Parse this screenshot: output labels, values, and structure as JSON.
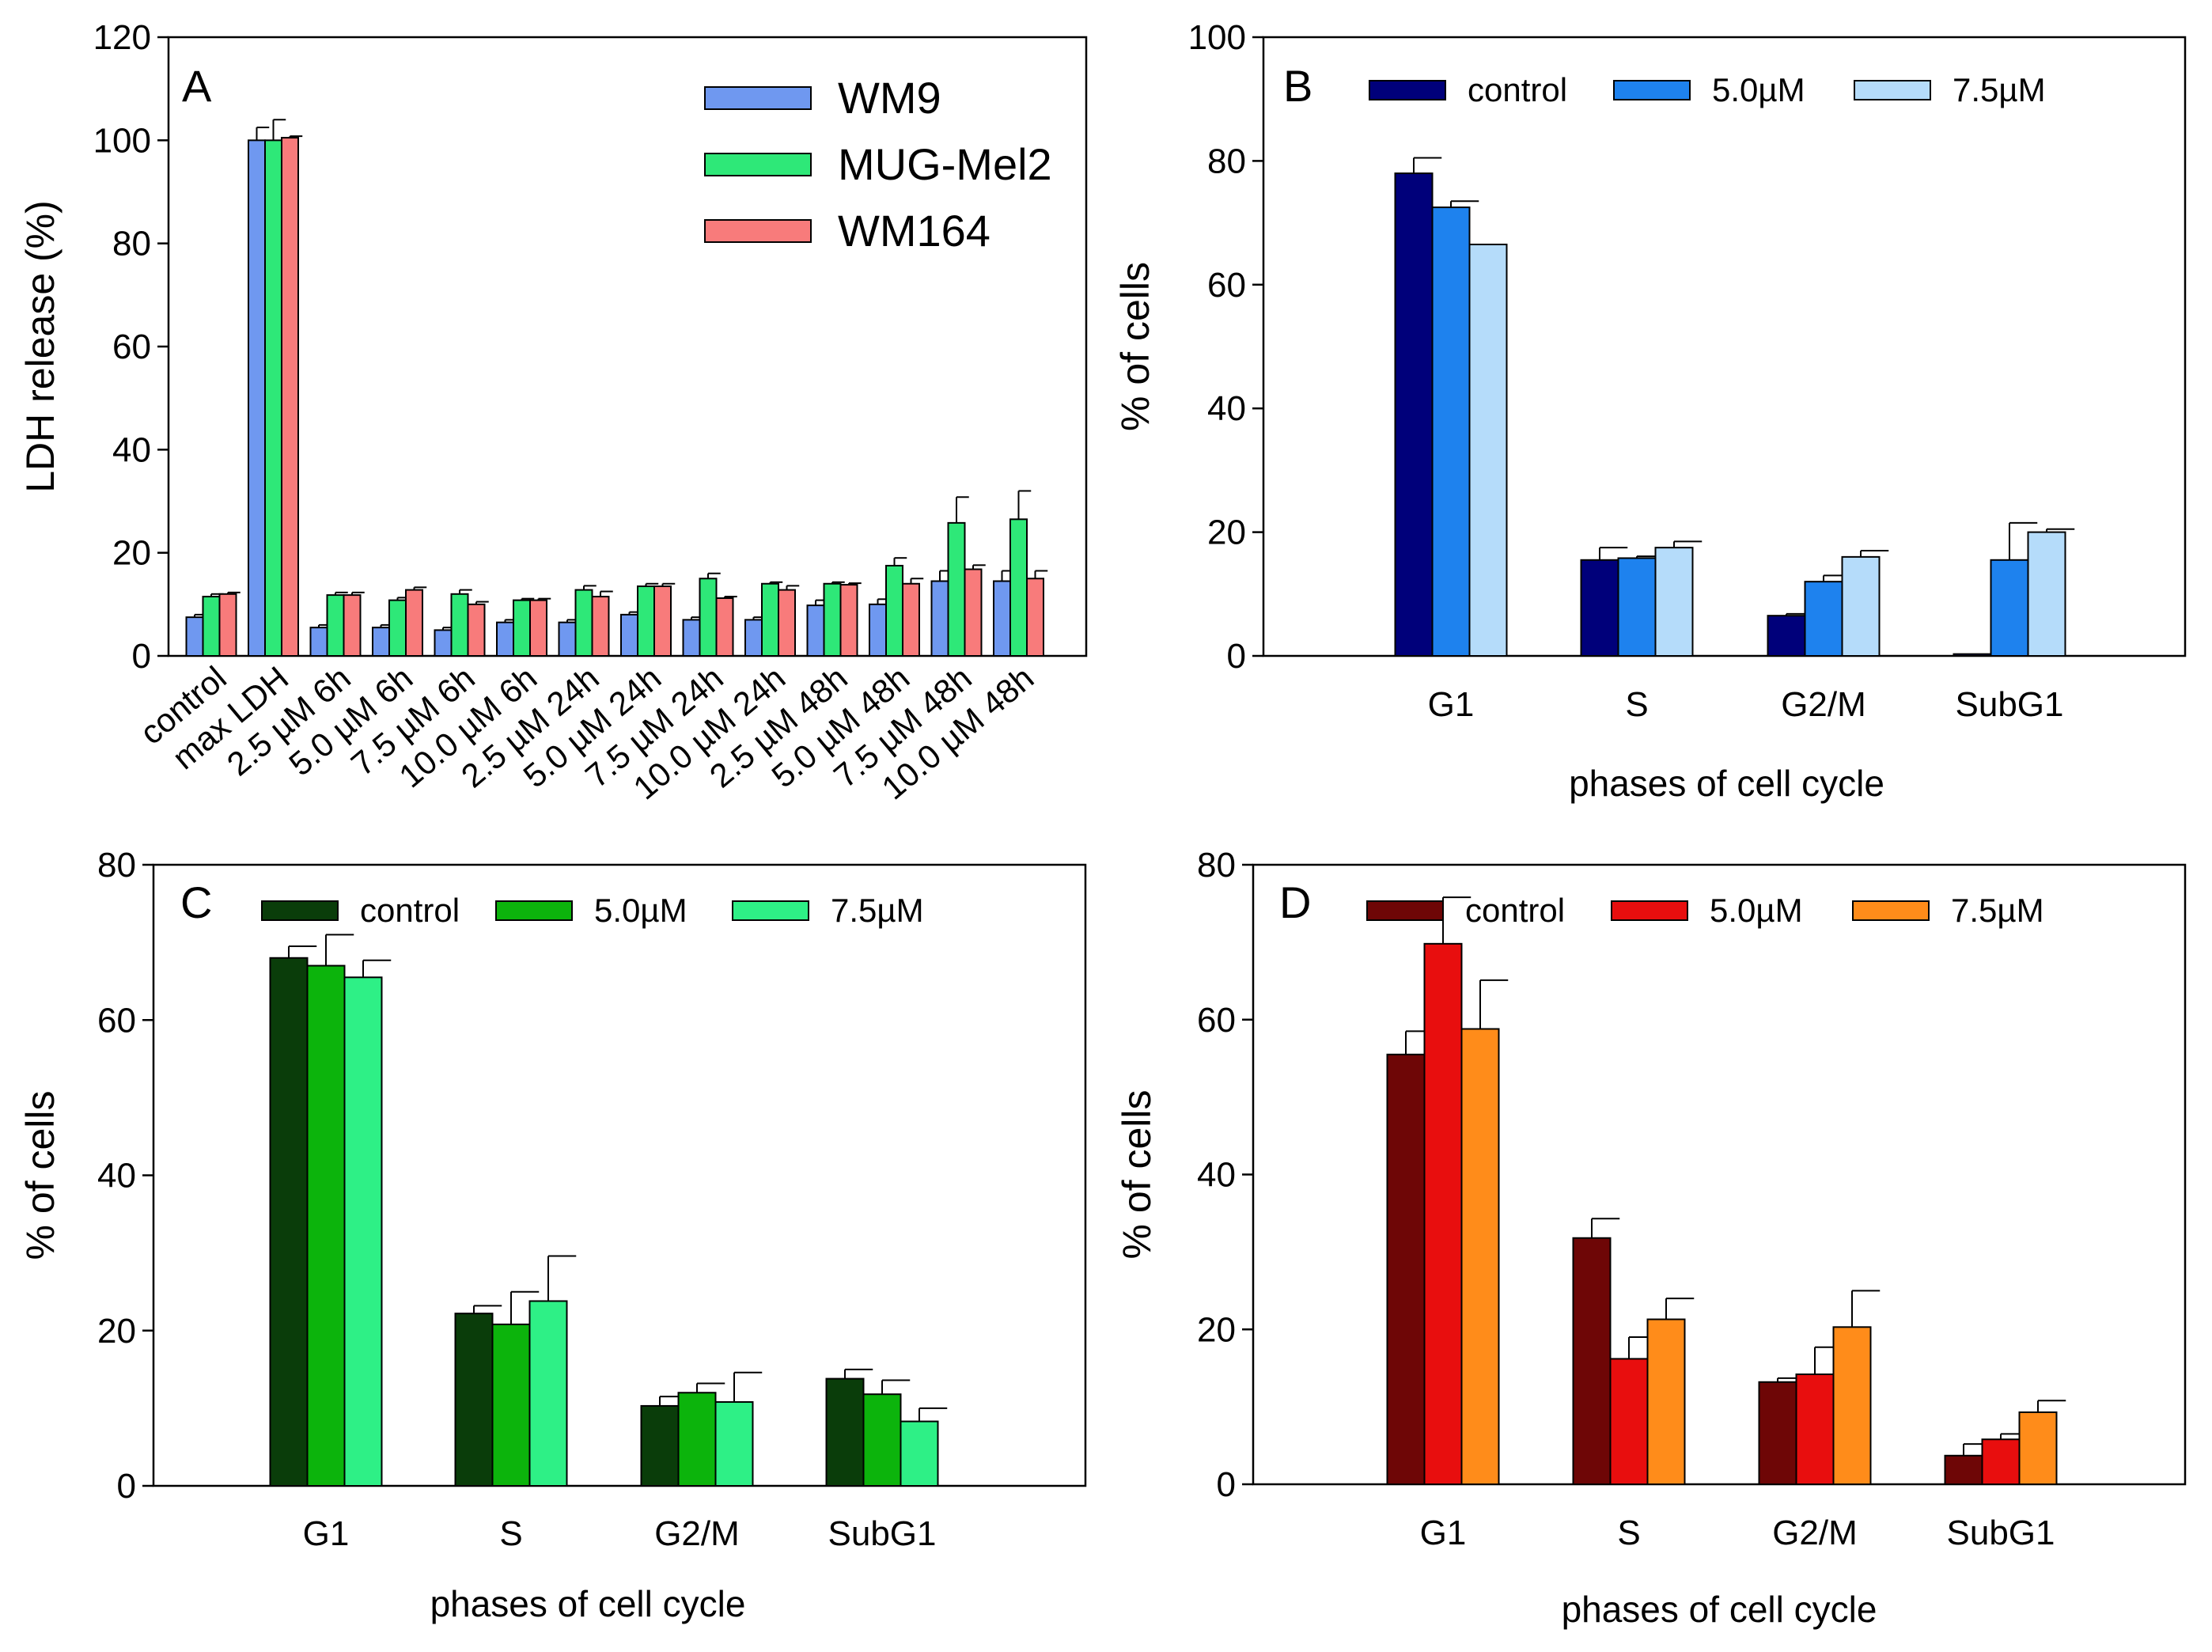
{
  "chart_data": [
    {
      "panel": "A",
      "type": "bar",
      "ylabel": "LDH release (%)",
      "xlabel": "",
      "ylim": [
        0,
        120
      ],
      "yticks": [
        0,
        20,
        40,
        60,
        80,
        100,
        120
      ],
      "legend_position": "top-right",
      "grid": false,
      "categories": [
        "control",
        "max LDH",
        "2.5 µM 6h",
        "5.0 µM 6h",
        "7.5 µM 6h",
        "10.0 µM 6h",
        "2.5 µM 24h",
        "5.0 µM 24h",
        "7.5 µM 24h",
        "10.0 µM 24h",
        "2.5 µM 48h",
        "5.0 µM 48h",
        "7.5 µM 48h",
        "10.0 µM 48h"
      ],
      "series": [
        {
          "name": "WM9",
          "color": "#6f98f0",
          "values": [
            7.5,
            100,
            5.5,
            5.5,
            5.0,
            6.5,
            6.5,
            8.0,
            7.0,
            7.0,
            9.8,
            10.0,
            14.5,
            14.5
          ],
          "errors": [
            0.5,
            2.5,
            0.5,
            0.5,
            0.5,
            0.5,
            0.5,
            0.5,
            0.5,
            0.5,
            1.0,
            1.0,
            2.0,
            2.0
          ]
        },
        {
          "name": "MUG-Mel2",
          "color": "#2ee878",
          "values": [
            11.5,
            100,
            11.8,
            10.8,
            12.0,
            10.8,
            12.8,
            13.5,
            15.0,
            14.0,
            14.0,
            17.5,
            25.8,
            26.5
          ],
          "errors": [
            0.5,
            4.0,
            0.5,
            0.5,
            0.8,
            0.3,
            0.8,
            0.5,
            1.0,
            0.3,
            0.3,
            1.5,
            5.0,
            5.5
          ]
        },
        {
          "name": "WM164",
          "color": "#f87b7b",
          "values": [
            12.0,
            100.5,
            11.8,
            12.8,
            10.0,
            10.8,
            11.5,
            13.5,
            11.2,
            12.8,
            13.8,
            14.0,
            16.8,
            15.0
          ],
          "errors": [
            0.3,
            0.3,
            0.5,
            0.5,
            0.5,
            0.3,
            1.0,
            0.5,
            0.3,
            0.8,
            0.3,
            1.0,
            0.8,
            1.5
          ]
        }
      ]
    },
    {
      "panel": "B",
      "type": "bar",
      "xlabel": "phases of cell cycle",
      "ylabel": "% of cells",
      "ylim": [
        0,
        100
      ],
      "yticks": [
        0,
        20,
        40,
        60,
        80,
        100
      ],
      "legend_position": "top",
      "grid": false,
      "categories": [
        "G1",
        "S",
        "G2/M",
        "SubG1"
      ],
      "series": [
        {
          "name": "control",
          "color": "#00007a",
          "values": [
            78,
            15.5,
            6.5,
            0.3
          ],
          "errors": [
            2.5,
            2.0,
            0.3,
            0
          ]
        },
        {
          "name": "5.0µM",
          "color": "#1e82ee",
          "values": [
            72.5,
            15.8,
            12.0,
            15.5
          ],
          "errors": [
            1.0,
            0.3,
            1.0,
            6.0
          ]
        },
        {
          "name": "7.5µM",
          "color": "#b5dcfa",
          "values": [
            66.5,
            17.5,
            16.0,
            20.0
          ],
          "errors": [
            0,
            1.0,
            1.0,
            0.5
          ]
        }
      ]
    },
    {
      "panel": "C",
      "type": "bar",
      "xlabel": "phases of cell cycle",
      "ylabel": "% of cells",
      "ylim": [
        0,
        80
      ],
      "yticks": [
        0,
        20,
        40,
        60,
        80
      ],
      "legend_position": "top",
      "grid": false,
      "categories": [
        "G1",
        "S",
        "G2/M",
        "SubG1"
      ],
      "series": [
        {
          "name": "control",
          "color": "#0a3d0a",
          "values": [
            68,
            22.2,
            10.3,
            13.8
          ],
          "errors": [
            1.5,
            1.0,
            1.2,
            1.2
          ]
        },
        {
          "name": "5.0µM",
          "color": "#0cb40c",
          "values": [
            67,
            20.8,
            12.0,
            11.8
          ],
          "errors": [
            4.0,
            4.2,
            1.2,
            1.8
          ]
        },
        {
          "name": "7.5µM",
          "color": "#2ef086",
          "values": [
            65.5,
            23.8,
            10.8,
            8.3
          ],
          "errors": [
            2.2,
            5.8,
            3.8,
            1.7
          ]
        }
      ]
    },
    {
      "panel": "D",
      "type": "bar",
      "xlabel": "phases of cell cycle",
      "ylabel": "% of cells",
      "ylim": [
        0,
        80
      ],
      "yticks": [
        0,
        20,
        40,
        60,
        80
      ],
      "legend_position": "top",
      "grid": false,
      "categories": [
        "G1",
        "S",
        "G2/M",
        "SubG1"
      ],
      "series": [
        {
          "name": "control",
          "color": "#6e0606",
          "values": [
            55.5,
            31.8,
            13.2,
            3.7
          ],
          "errors": [
            3.0,
            2.5,
            0.5,
            1.5
          ]
        },
        {
          "name": "5.0µM",
          "color": "#e80e0e",
          "values": [
            69.8,
            16.2,
            14.2,
            5.8
          ],
          "errors": [
            6.0,
            2.8,
            3.5,
            0.7
          ]
        },
        {
          "name": "7.5µM",
          "color": "#ff8c1a",
          "values": [
            58.8,
            21.3,
            20.3,
            9.3
          ],
          "errors": [
            6.3,
            2.7,
            4.7,
            1.5
          ]
        }
      ]
    }
  ]
}
